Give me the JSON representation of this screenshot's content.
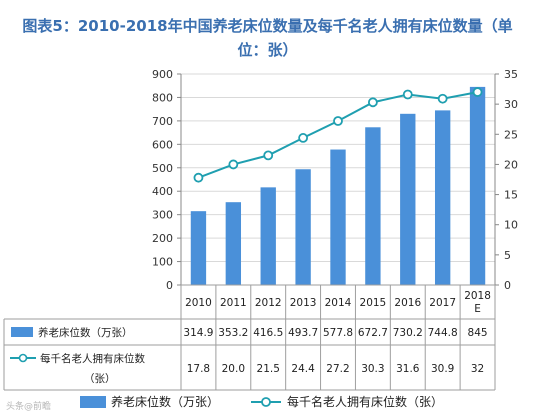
{
  "title_line1": "图表5：2010-2018年中国养老床位数量及每千名老人拥有床位数量（单",
  "title_line2": "位：张）",
  "watermark": "头条@前瞻",
  "colors": {
    "bar": "#4a90d9",
    "line": "#1f9fb0",
    "grid": "#d9d9d9",
    "title": "#3a6fb0"
  },
  "chart_data": {
    "type": "bar",
    "categories": [
      "2010",
      "2011",
      "2012",
      "2013",
      "2014",
      "2015",
      "2016",
      "2017",
      "2018\nE"
    ],
    "series": [
      {
        "name": "养老床位数（万张）",
        "type": "bar",
        "axis": "left",
        "values": [
          314.9,
          353.2,
          416.5,
          493.7,
          577.8,
          672.7,
          730.2,
          744.8,
          845
        ],
        "labels": [
          "314.9",
          "353.2",
          "416.5",
          "493.7",
          "577.8",
          "672.7",
          "730.2",
          "744.8",
          "845"
        ]
      },
      {
        "name": "每千名老人拥有床位数（张）",
        "table_name": [
          "每千名老人拥有床位数",
          "（张）"
        ],
        "type": "line",
        "axis": "right",
        "values": [
          17.8,
          20.0,
          21.5,
          24.4,
          27.2,
          30.3,
          31.6,
          30.9,
          32
        ],
        "labels": [
          "17.8",
          "20.0",
          "21.5",
          "24.4",
          "27.2",
          "30.3",
          "31.6",
          "30.9",
          "32"
        ]
      }
    ],
    "y_left": {
      "min": 0,
      "max": 900,
      "ticks": [
        0,
        100,
        200,
        300,
        400,
        500,
        600,
        700,
        800,
        900
      ]
    },
    "y_right": {
      "min": 0,
      "max": 35,
      "ticks": [
        0,
        5,
        10,
        15,
        20,
        25,
        30,
        35
      ]
    },
    "legend": {
      "placement": "bottom",
      "items": [
        "养老床位数（万张）",
        "每千名老人拥有床位数（张）"
      ]
    },
    "data_table": true
  }
}
